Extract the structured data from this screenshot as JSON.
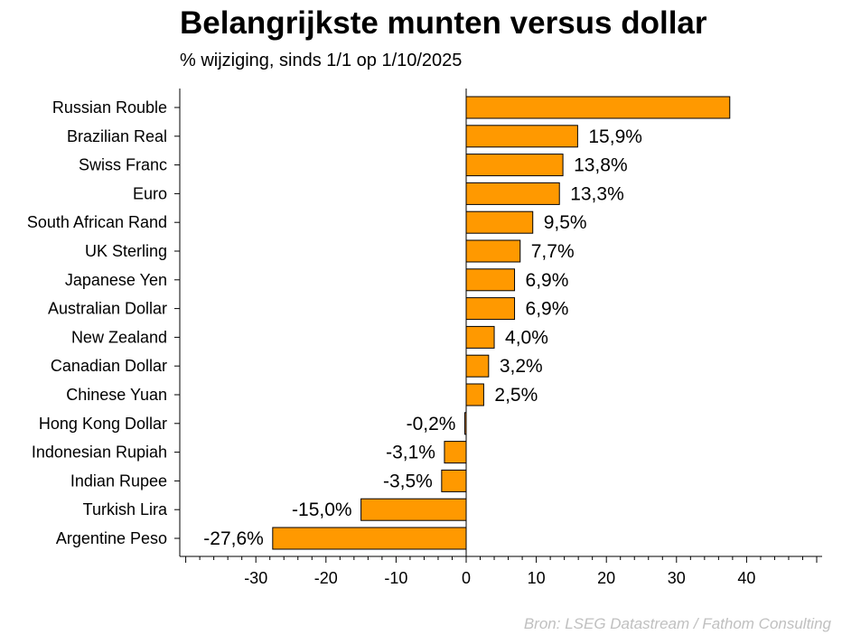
{
  "title": "Belangrijkste munten versus dollar",
  "subtitle": "% wijziging, sinds 1/1 op 1/10/2025",
  "source": "Bron: LSEG Datastream / Fathom Consulting",
  "colors": {
    "bar": "#FF9900",
    "bar_outline": "#000000"
  },
  "chart_data": {
    "type": "bar",
    "orientation": "horizontal",
    "categories": [
      "Russian Rouble",
      "Brazilian Real",
      "Swiss Franc",
      "Euro",
      "South African Rand",
      "UK Sterling",
      "Japanese Yen",
      "Australian Dollar",
      "New Zealand",
      "Canadian Dollar",
      "Chinese Yuan",
      "Hong Kong Dollar",
      "Indonesian Rupiah",
      "Indian Rupee",
      "Turkish Lira",
      "Argentine Peso"
    ],
    "values": [
      37.6,
      15.9,
      13.8,
      13.3,
      9.5,
      7.7,
      6.9,
      6.9,
      4.0,
      3.2,
      2.5,
      -0.2,
      -3.1,
      -3.5,
      -15.0,
      -27.6
    ],
    "data_labels": [
      "",
      "15,9%",
      "13,8%",
      "13,3%",
      "9,5%",
      "7,7%",
      "6,9%",
      "6,9%",
      "4,0%",
      "3,2%",
      "2,5%",
      "-0,2%",
      "-3,1%",
      "-3,5%",
      "-15,0%",
      "-27,6%"
    ],
    "xlim": [
      -41,
      51
    ],
    "xticks": [
      -30,
      -20,
      -10,
      0,
      10,
      20,
      30,
      40
    ],
    "xtick_labels": [
      "-30",
      "-20",
      "-10",
      "0",
      "10",
      "20",
      "30",
      "40"
    ],
    "grid": false,
    "legend": "none"
  }
}
